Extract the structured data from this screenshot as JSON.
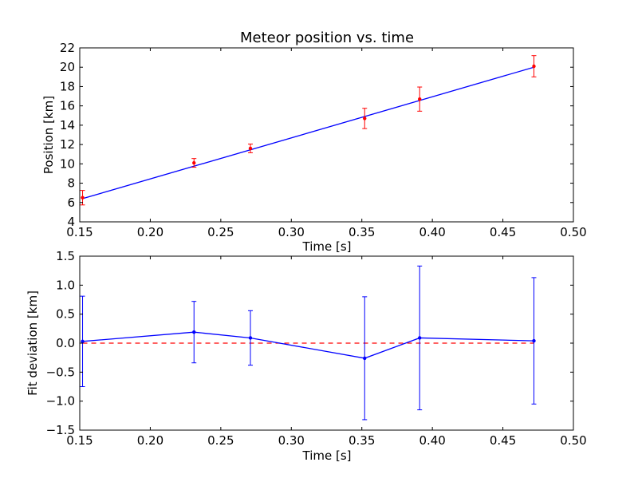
{
  "colors": {
    "fit_line": "#0000ff",
    "measurement": "#ff0000",
    "deviation": "#0000ff",
    "zero_line": "#ff0000"
  },
  "chart_data": [
    {
      "type": "line",
      "title": "Meteor position vs. time",
      "xlabel": "Time [s]",
      "ylabel": "Position [km]",
      "xlim": [
        0.15,
        0.5
      ],
      "ylim": [
        4,
        22
      ],
      "xticks": [
        "0.15",
        "0.20",
        "0.25",
        "0.30",
        "0.35",
        "0.40",
        "0.45",
        "0.50"
      ],
      "yticks": [
        "4",
        "6",
        "8",
        "10",
        "12",
        "14",
        "16",
        "18",
        "20",
        "22"
      ],
      "grid": false,
      "fit_line": {
        "x": [
          0.152,
          0.472
        ],
        "y": [
          6.4,
          20.0
        ]
      },
      "measurements": {
        "x": [
          0.152,
          0.231,
          0.271,
          0.352,
          0.391,
          0.472
        ],
        "y": [
          6.5,
          10.1,
          11.6,
          14.7,
          16.7,
          20.1
        ],
        "error": [
          0.75,
          0.45,
          0.45,
          1.05,
          1.25,
          1.1
        ]
      }
    },
    {
      "type": "line",
      "xlabel": "Time [s]",
      "ylabel": "Fit deviation [km]",
      "xlim": [
        0.15,
        0.5
      ],
      "ylim": [
        -1.5,
        1.5
      ],
      "xticks": [
        "0.15",
        "0.20",
        "0.25",
        "0.30",
        "0.35",
        "0.40",
        "0.45",
        "0.50"
      ],
      "yticks": [
        "−1.5",
        "−1.0",
        "−0.5",
        "0.0",
        "0.5",
        "1.0",
        "1.5"
      ],
      "grid": false,
      "deviation": {
        "x": [
          0.152,
          0.231,
          0.271,
          0.352,
          0.391,
          0.472
        ],
        "y": [
          0.03,
          0.19,
          0.09,
          -0.26,
          0.09,
          0.04
        ],
        "error": [
          0.78,
          0.53,
          0.47,
          1.06,
          1.24,
          1.09
        ]
      },
      "zero_line": {
        "x": [
          0.152,
          0.472
        ],
        "y": [
          0.0,
          0.0
        ]
      }
    }
  ]
}
